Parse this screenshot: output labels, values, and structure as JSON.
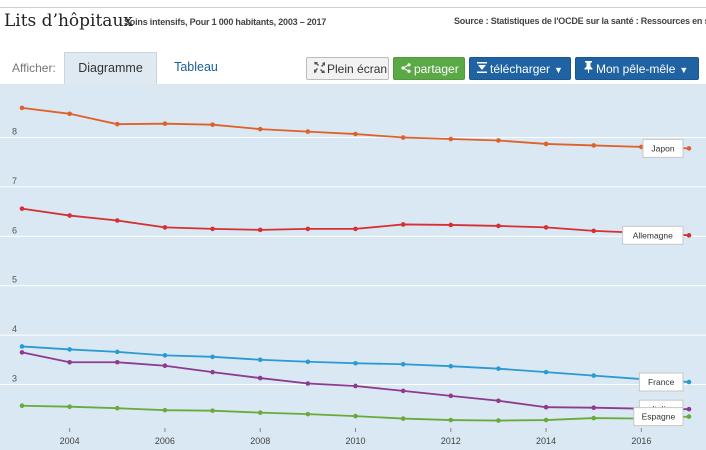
{
  "header": {
    "title": "Lits d’hôpitaux",
    "subtitle": "Soins intensifs, Pour 1 000 habitants, 2003 – 2017",
    "source": "Source : Statistiques de l'OCDE sur la santé : Ressources en santé"
  },
  "toolbar": {
    "afficher_label": "Afficher:",
    "tabs": [
      {
        "label": "Diagramme",
        "active": true
      },
      {
        "label": "Tableau",
        "active": false
      }
    ],
    "plein_ecran_label": "Plein écran",
    "partager_label": "partager",
    "telecharger_label": "télécharger",
    "pele_mele_label": "Mon pêle-mêle"
  },
  "icons": {
    "fullscreen": "expand-arrows-icon",
    "share": "share-icon",
    "download": "download-icon",
    "pin": "pin-icon",
    "dropdown": "caret-down-icon"
  },
  "colors": {
    "plot_background": "#d9e8f2",
    "gridline": "#ffffff",
    "partager_button": "#5ba846",
    "blue_buttons": "#1f63a3"
  },
  "chart_data": {
    "type": "line",
    "title": "Lits d’hôpitaux",
    "subtitle": "Soins intensifs, Pour 1 000 habitants, 2003 – 2017",
    "xlabel": "",
    "ylabel": "",
    "x": [
      2003,
      2004,
      2005,
      2006,
      2007,
      2008,
      2009,
      2010,
      2011,
      2012,
      2013,
      2014,
      2015,
      2016,
      2017
    ],
    "xticks": [
      "2004",
      "2006",
      "2008",
      "2010",
      "2012",
      "2014",
      "2016"
    ],
    "yticks": [
      "3",
      "4",
      "5",
      "6",
      "7",
      "8"
    ],
    "xlim": [
      2003,
      2017
    ],
    "ylim": [
      2.2,
      8.8
    ],
    "grid": true,
    "legend": "direct labels at line ends",
    "series": [
      {
        "name": "Japon",
        "color": "#e0602a",
        "values": [
          8.6,
          8.48,
          8.27,
          8.28,
          8.26,
          8.17,
          8.12,
          8.07,
          8.0,
          7.97,
          7.94,
          7.87,
          7.84,
          7.81,
          7.78
        ]
      },
      {
        "name": "Allemagne",
        "color": "#d63036",
        "values": [
          6.56,
          6.42,
          6.32,
          6.18,
          6.15,
          6.13,
          6.15,
          6.15,
          6.24,
          6.23,
          6.21,
          6.18,
          6.11,
          6.07,
          6.02
        ]
      },
      {
        "name": "France",
        "color": "#2a9ad3",
        "values": [
          3.77,
          3.71,
          3.66,
          3.59,
          3.56,
          3.5,
          3.46,
          3.43,
          3.41,
          3.37,
          3.32,
          3.25,
          3.18,
          3.11,
          3.05
        ]
      },
      {
        "name": "Italie",
        "color": "#8e3a8e",
        "values": [
          3.65,
          3.45,
          3.45,
          3.38,
          3.25,
          3.13,
          3.02,
          2.97,
          2.87,
          2.77,
          2.67,
          2.54,
          2.53,
          2.51,
          2.5
        ]
      },
      {
        "name": "Espagne",
        "color": "#6aaa3a",
        "values": [
          2.57,
          2.55,
          2.52,
          2.48,
          2.47,
          2.43,
          2.4,
          2.36,
          2.31,
          2.28,
          2.27,
          2.28,
          2.32,
          2.31,
          2.35
        ]
      }
    ]
  }
}
